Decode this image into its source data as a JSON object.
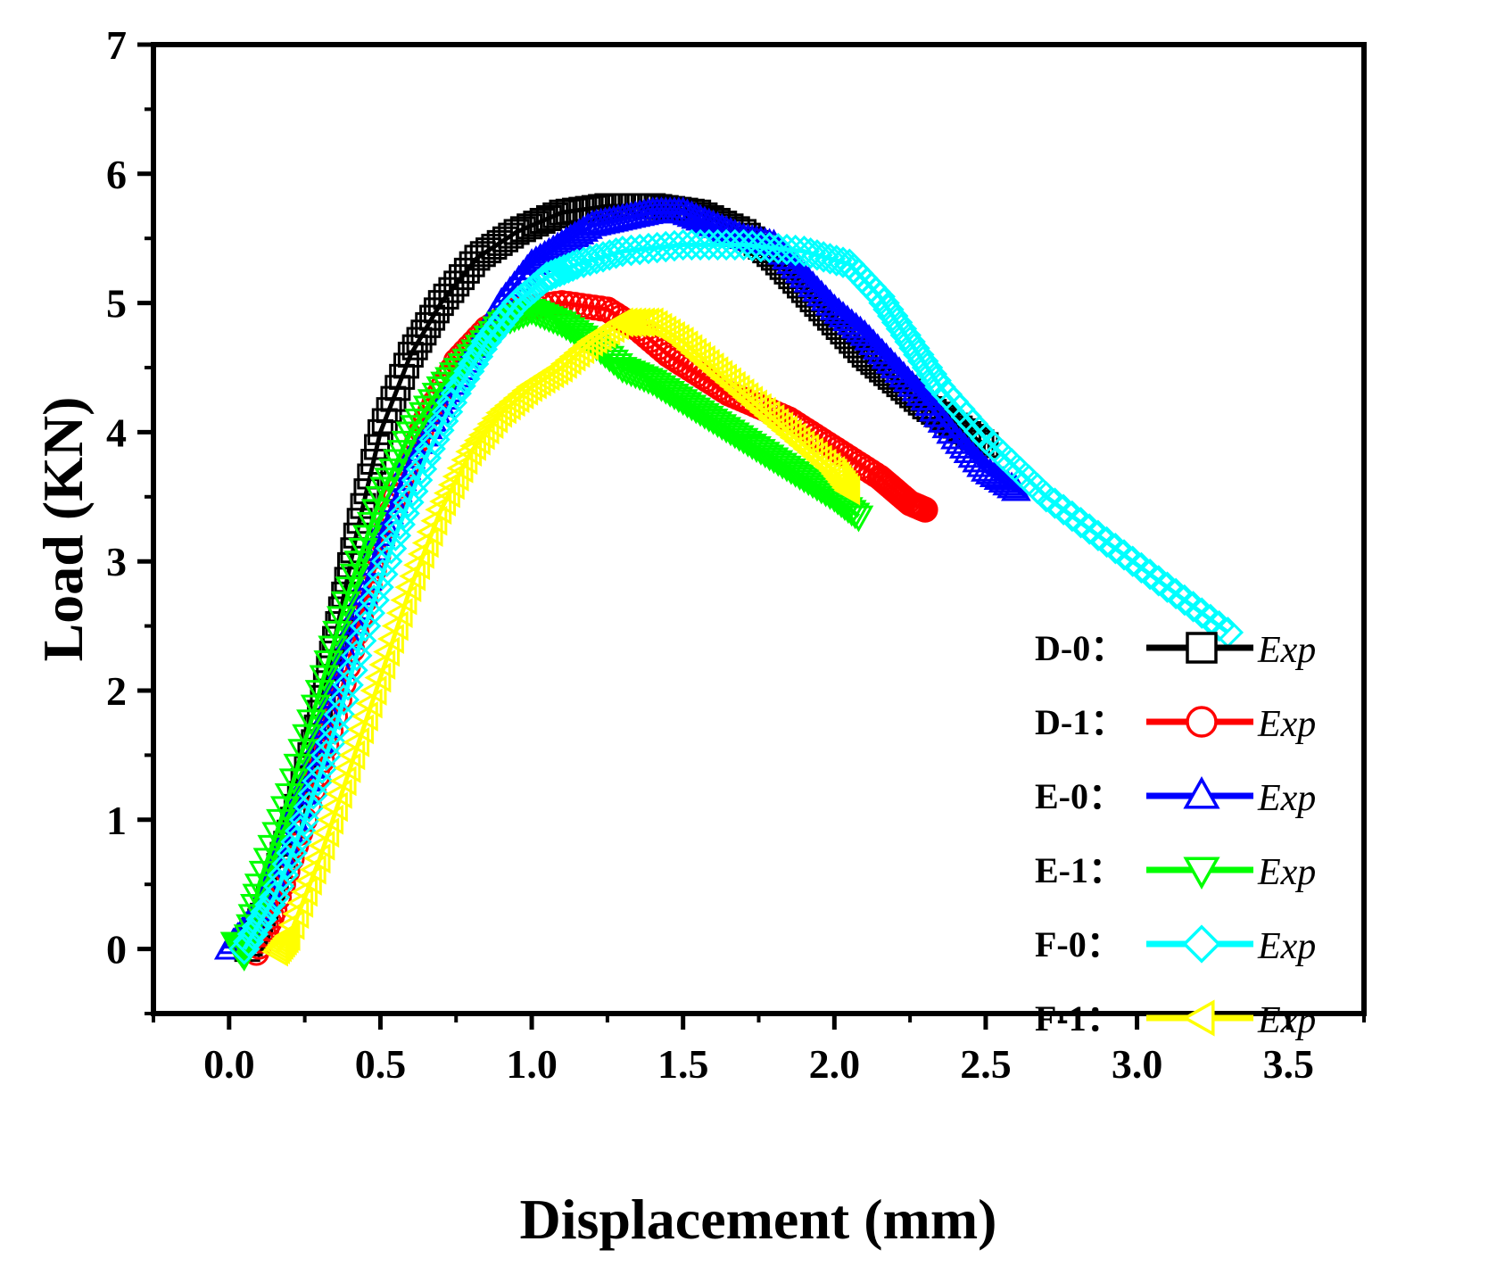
{
  "chart_data": {
    "type": "scatter",
    "title": "",
    "xlabel": "Displacement (mm)",
    "ylabel": "Load (KN)",
    "xlim": [
      -0.25,
      3.75
    ],
    "ylim": [
      -0.5,
      7
    ],
    "x_ticks": [
      0.0,
      0.5,
      1.0,
      1.5,
      2.0,
      2.5,
      3.0,
      3.5
    ],
    "x_tick_labels": [
      "0.0",
      "0.5",
      "1.0",
      "1.5",
      "2.0",
      "2.5",
      "3.0",
      "3.5"
    ],
    "y_ticks": [
      0,
      1,
      2,
      3,
      4,
      5,
      6,
      7
    ],
    "y_tick_labels": [
      "0",
      "1",
      "2",
      "3",
      "4",
      "5",
      "6",
      "7"
    ],
    "grid": false,
    "legend_position": "right",
    "series": [
      {
        "name": "D-0",
        "label": "D-0：",
        "marker_label": "Exp",
        "color": "#000000",
        "marker": "square",
        "points": [
          [
            0.06,
            0
          ],
          [
            0.12,
            0.3
          ],
          [
            0.2,
            0.9
          ],
          [
            0.28,
            1.6
          ],
          [
            0.35,
            2.4
          ],
          [
            0.42,
            3.2
          ],
          [
            0.5,
            4.0
          ],
          [
            0.6,
            4.6
          ],
          [
            0.7,
            5.0
          ],
          [
            0.82,
            5.35
          ],
          [
            0.95,
            5.55
          ],
          [
            1.1,
            5.7
          ],
          [
            1.25,
            5.75
          ],
          [
            1.4,
            5.75
          ],
          [
            1.55,
            5.7
          ],
          [
            1.7,
            5.55
          ],
          [
            1.8,
            5.35
          ],
          [
            1.9,
            5.1
          ],
          [
            2.0,
            4.85
          ],
          [
            2.1,
            4.6
          ],
          [
            2.2,
            4.4
          ],
          [
            2.3,
            4.2
          ],
          [
            2.4,
            4.05
          ],
          [
            2.5,
            3.9
          ]
        ]
      },
      {
        "name": "D-1",
        "label": "D-1：",
        "marker_label": "Exp",
        "color": "#ff0000",
        "marker": "circle",
        "points": [
          [
            0.09,
            -0.03
          ],
          [
            0.15,
            0.3
          ],
          [
            0.25,
            1.0
          ],
          [
            0.35,
            1.8
          ],
          [
            0.45,
            2.7
          ],
          [
            0.55,
            3.5
          ],
          [
            0.65,
            4.1
          ],
          [
            0.75,
            4.55
          ],
          [
            0.85,
            4.8
          ],
          [
            0.95,
            4.95
          ],
          [
            1.1,
            5.0
          ],
          [
            1.25,
            4.95
          ],
          [
            1.35,
            4.8
          ],
          [
            1.45,
            4.6
          ],
          [
            1.55,
            4.45
          ],
          [
            1.65,
            4.3
          ],
          [
            1.75,
            4.2
          ],
          [
            1.85,
            4.1
          ],
          [
            1.95,
            3.95
          ],
          [
            2.05,
            3.8
          ],
          [
            2.15,
            3.65
          ],
          [
            2.2,
            3.55
          ],
          [
            2.25,
            3.45
          ],
          [
            2.3,
            3.4
          ]
        ]
      },
      {
        "name": "E-0",
        "label": "E-0：",
        "marker_label": "Exp",
        "color": "#0000ff",
        "marker": "triangle-up",
        "points": [
          [
            0.0,
            0
          ],
          [
            0.1,
            0.3
          ],
          [
            0.2,
            0.9
          ],
          [
            0.3,
            1.6
          ],
          [
            0.4,
            2.4
          ],
          [
            0.5,
            3.2
          ],
          [
            0.6,
            3.8
          ],
          [
            0.7,
            4.2
          ],
          [
            0.8,
            4.6
          ],
          [
            0.9,
            5.0
          ],
          [
            1.0,
            5.3
          ],
          [
            1.1,
            5.45
          ],
          [
            1.2,
            5.6
          ],
          [
            1.3,
            5.65
          ],
          [
            1.4,
            5.7
          ],
          [
            1.5,
            5.7
          ],
          [
            1.6,
            5.6
          ],
          [
            1.7,
            5.5
          ],
          [
            1.8,
            5.45
          ],
          [
            1.9,
            5.2
          ],
          [
            2.0,
            4.95
          ],
          [
            2.1,
            4.75
          ],
          [
            2.2,
            4.5
          ],
          [
            2.3,
            4.25
          ],
          [
            2.4,
            3.95
          ],
          [
            2.5,
            3.7
          ],
          [
            2.6,
            3.55
          ]
        ]
      },
      {
        "name": "E-1",
        "label": "E-1：",
        "marker_label": "Exp",
        "color": "#00ff00",
        "marker": "triangle-down",
        "points": [
          [
            0.02,
            0.05
          ],
          [
            0.05,
            -0.05
          ],
          [
            0.1,
            0.5
          ],
          [
            0.2,
            1.2
          ],
          [
            0.3,
            2.0
          ],
          [
            0.4,
            2.8
          ],
          [
            0.5,
            3.5
          ],
          [
            0.6,
            4.0
          ],
          [
            0.7,
            4.35
          ],
          [
            0.8,
            4.6
          ],
          [
            0.9,
            4.85
          ],
          [
            1.0,
            4.95
          ],
          [
            1.1,
            4.85
          ],
          [
            1.2,
            4.7
          ],
          [
            1.3,
            4.5
          ],
          [
            1.4,
            4.4
          ],
          [
            1.5,
            4.25
          ],
          [
            1.6,
            4.1
          ],
          [
            1.7,
            3.95
          ],
          [
            1.8,
            3.8
          ],
          [
            1.9,
            3.65
          ],
          [
            2.0,
            3.5
          ],
          [
            2.08,
            3.35
          ]
        ]
      },
      {
        "name": "F-0",
        "label": "F-0：",
        "marker_label": "Exp",
        "color": "#00ffff",
        "marker": "diamond",
        "points": [
          [
            0.05,
            0
          ],
          [
            0.15,
            0.4
          ],
          [
            0.25,
            1.0
          ],
          [
            0.35,
            1.7
          ],
          [
            0.45,
            2.5
          ],
          [
            0.55,
            3.2
          ],
          [
            0.65,
            3.8
          ],
          [
            0.75,
            4.3
          ],
          [
            0.85,
            4.7
          ],
          [
            0.95,
            5.0
          ],
          [
            1.05,
            5.2
          ],
          [
            1.15,
            5.3
          ],
          [
            1.3,
            5.4
          ],
          [
            1.5,
            5.45
          ],
          [
            1.7,
            5.45
          ],
          [
            1.9,
            5.4
          ],
          [
            2.05,
            5.3
          ],
          [
            2.15,
            5.05
          ],
          [
            2.25,
            4.7
          ],
          [
            2.35,
            4.35
          ],
          [
            2.5,
            3.95
          ],
          [
            2.7,
            3.5
          ],
          [
            2.9,
            3.15
          ],
          [
            3.1,
            2.8
          ],
          [
            3.3,
            2.45
          ]
        ]
      },
      {
        "name": "F-1",
        "label": "F-1：",
        "marker_label": "Exp",
        "color": "#ffff00",
        "marker": "triangle-left",
        "points": [
          [
            0.16,
            -0.02
          ],
          [
            0.2,
            0.1
          ],
          [
            0.3,
            0.7
          ],
          [
            0.4,
            1.4
          ],
          [
            0.5,
            2.1
          ],
          [
            0.6,
            2.8
          ],
          [
            0.7,
            3.4
          ],
          [
            0.8,
            3.85
          ],
          [
            0.9,
            4.15
          ],
          [
            1.0,
            4.35
          ],
          [
            1.1,
            4.5
          ],
          [
            1.2,
            4.7
          ],
          [
            1.3,
            4.85
          ],
          [
            1.4,
            4.85
          ],
          [
            1.5,
            4.7
          ],
          [
            1.6,
            4.5
          ],
          [
            1.7,
            4.3
          ],
          [
            1.8,
            4.1
          ],
          [
            1.9,
            3.9
          ],
          [
            2.0,
            3.7
          ],
          [
            2.05,
            3.55
          ]
        ]
      }
    ]
  }
}
